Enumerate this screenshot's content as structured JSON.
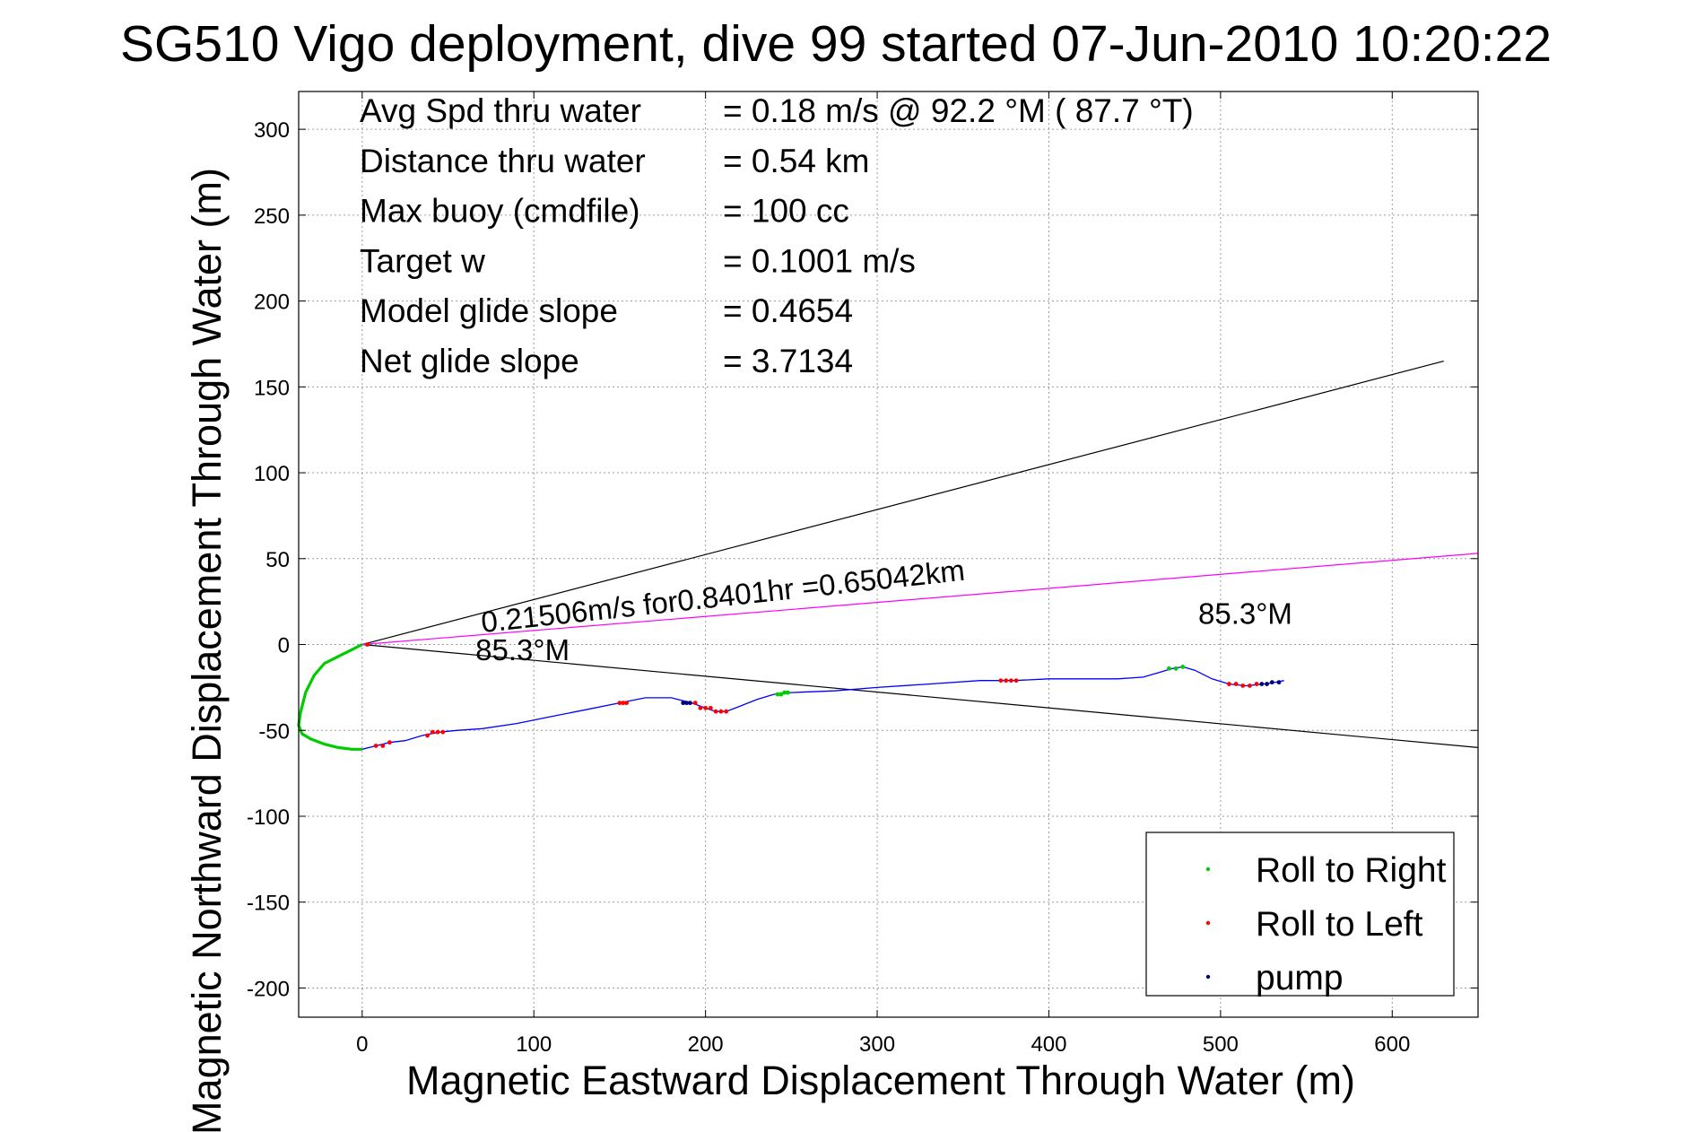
{
  "chart_data": {
    "type": "line",
    "title": "SG510 Vigo deployment, dive 99 started 07-Jun-2010 10:20:22",
    "xlabel": "Magnetic Eastward Displacement Through Water (m)",
    "ylabel": "Magnetic Northward Displacement Through Water (m)",
    "xlim": [
      -37,
      650
    ],
    "ylim": [
      -217,
      322
    ],
    "xticks": [
      0,
      100,
      200,
      300,
      400,
      500,
      600
    ],
    "yticks": [
      -200,
      -150,
      -100,
      -50,
      0,
      50,
      100,
      150,
      200,
      250,
      300
    ],
    "grid": true,
    "legend_position": "bottom-right",
    "stats": [
      {
        "label": "Avg Spd thru water",
        "value": "=  0.18 m/s @  92.2 °M ( 87.7 °T)"
      },
      {
        "label": "Distance thru water",
        "value": "=  0.54 km"
      },
      {
        "label": "Max buoy (cmdfile)",
        "value": "= 100 cc"
      },
      {
        "label": "Target w",
        "value": "= 0.1001 m/s"
      },
      {
        "label": "Model glide slope",
        "value": "= 0.4654"
      },
      {
        "label": "Net glide slope",
        "value": "= 3.7134"
      }
    ],
    "annotations": {
      "current": "0.21506m/s for0.8401hr =0.65042km",
      "heading_near": "85.3°M",
      "heading_far": "85.3°M"
    },
    "legend": [
      {
        "label": "Roll to Right",
        "color": "#00cc00"
      },
      {
        "label": "Roll to Left",
        "color": "#ff0000"
      },
      {
        "label": "pump",
        "color": "#000080"
      }
    ],
    "colors": {
      "track": "#0000ff",
      "current_line": "#ff00ff",
      "cone_lines": "#000000"
    },
    "track": {
      "x": [
        0,
        -6,
        -14,
        -22,
        -28,
        -33,
        -36,
        -37,
        -35,
        -30,
        -22,
        -14,
        -6,
        0,
        8,
        16,
        25,
        35,
        45,
        55,
        70,
        90,
        110,
        130,
        150,
        165,
        180,
        192,
        200,
        206,
        212,
        220,
        230,
        240,
        250,
        275,
        300,
        330,
        360,
        380,
        400,
        420,
        440,
        455,
        465,
        472,
        478,
        485,
        495,
        505,
        515,
        525,
        532,
        537
      ],
      "y": [
        0,
        -3,
        -7,
        -11,
        -18,
        -28,
        -40,
        -47,
        -52,
        -55,
        -58,
        -60,
        -61,
        -61,
        -59,
        -57,
        -56,
        -53,
        -51,
        -50,
        -49,
        -46,
        -42,
        -38,
        -34,
        -31,
        -31,
        -34,
        -37,
        -39,
        -39,
        -36,
        -32,
        -29,
        -28,
        -27,
        -25,
        -23,
        -21,
        -21,
        -20,
        -20,
        -20,
        -19,
        -16,
        -14,
        -13,
        -15,
        -20,
        -23,
        -24,
        -23,
        -22,
        -21
      ]
    },
    "segments": [
      {
        "type": "Roll to Right",
        "x": [
          0,
          -6,
          -14,
          -22,
          -28,
          -33,
          -36,
          -37,
          -35,
          -30,
          -22,
          -14,
          -6,
          0
        ]
      },
      {
        "type": "Roll to Left",
        "x": [
          3,
          8,
          12,
          16
        ]
      },
      {
        "type": "Roll to Left",
        "x": [
          38,
          41,
          44,
          47
        ]
      },
      {
        "type": "Roll to Left",
        "x": [
          150,
          152,
          154
        ]
      },
      {
        "type": "pump",
        "x": [
          187,
          189,
          191
        ]
      },
      {
        "type": "Roll to Left",
        "x": [
          194,
          197,
          200,
          203,
          206,
          209,
          212
        ]
      },
      {
        "type": "Roll to Right",
        "x": [
          242,
          244,
          246,
          248
        ]
      },
      {
        "type": "Roll to Left",
        "x": [
          372,
          375,
          378,
          381
        ]
      },
      {
        "type": "Roll to Right",
        "x": [
          470,
          474,
          478
        ]
      },
      {
        "type": "Roll to Left",
        "x": [
          505,
          509,
          513,
          517,
          521
        ]
      },
      {
        "type": "pump",
        "x": [
          524,
          527,
          530,
          534
        ]
      }
    ],
    "current_line": {
      "x": [
        0,
        650
      ],
      "y": [
        0,
        53.1
      ]
    },
    "cone_lines": [
      {
        "x": [
          0,
          630
        ],
        "y": [
          0,
          165
        ]
      },
      {
        "x": [
          0,
          650
        ],
        "y": [
          0,
          -60
        ]
      }
    ]
  }
}
